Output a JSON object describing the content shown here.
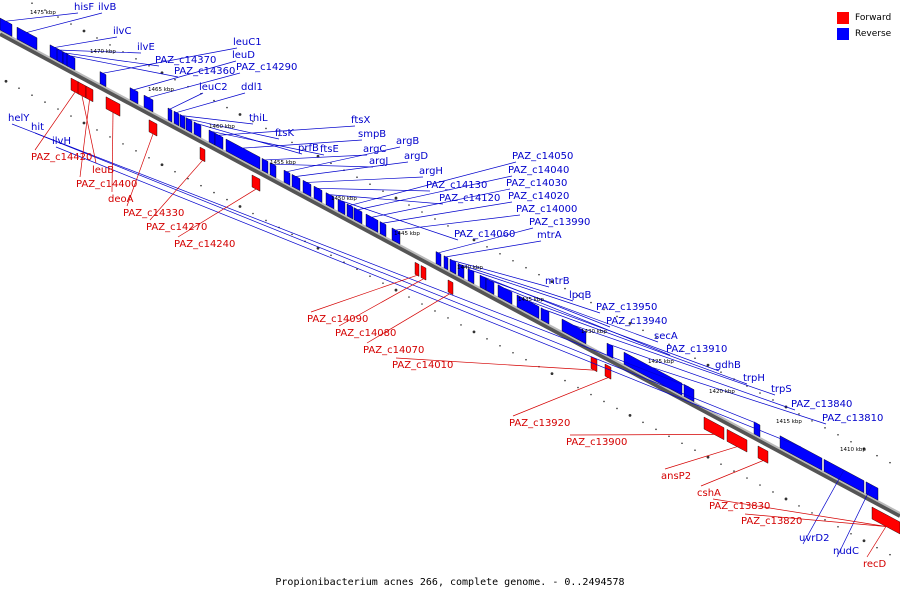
{
  "colors": {
    "forward": "#ff0000",
    "reverse": "#0000ff",
    "fwd_label": "#d40000",
    "rev_label": "#0000cc",
    "tick": "#000000"
  },
  "legend": {
    "forward": "Forward",
    "reverse": "Reverse"
  },
  "caption": "Propionibacterium acnes 266, complete genome. - 0..2494578",
  "kbp_labels": [
    "1475 kbp",
    "1470 kbp",
    "1465 kbp",
    "1460 kbp",
    "1455 kbp",
    "1450 kbp",
    "1445 kbp",
    "1440 kbp",
    "1435 kbp",
    "1430 kbp",
    "1425 kbp",
    "1420 kbp",
    "1415 kbp",
    "1410 kbp"
  ],
  "reverse_labels": [
    "hisF",
    "ilvB",
    "ilvC",
    "ilvE",
    "PAZ_c14370",
    "PAZ_c14360",
    "leuC1",
    "leuD",
    "PAZ_c14290",
    "leuC2",
    "ddl1",
    "thiL",
    "ftsK",
    "prfB",
    "ftsE",
    "ftsX",
    "smpB",
    "argC",
    "argJ",
    "argB",
    "argD",
    "argH",
    "PAZ_c14130",
    "PAZ_c14120",
    "PAZ_c14060",
    "PAZ_c14050",
    "PAZ_c14040",
    "PAZ_c14030",
    "PAZ_c14020",
    "PAZ_c14000",
    "PAZ_c13990",
    "mtrA",
    "mtrB",
    "lpqB",
    "PAZ_c13950",
    "PAZ_c13940",
    "secA",
    "PAZ_c13910",
    "gdhB",
    "trpH",
    "trpS",
    "PAZ_c13840",
    "PAZ_c13810",
    "helY",
    "hit",
    "ilvH",
    "uvrD2",
    "nudC"
  ],
  "forward_labels": [
    "PAZ_c14420",
    "leuB",
    "PAZ_c14400",
    "deoA",
    "PAZ_c14330",
    "PAZ_c14270",
    "PAZ_c14240",
    "PAZ_c14090",
    "PAZ_c14080",
    "PAZ_c14070",
    "PAZ_c14010",
    "PAZ_c13920",
    "PAZ_c13900",
    "ansP2",
    "cshA",
    "PAZ_c13830",
    "PAZ_c13820",
    "recD"
  ]
}
